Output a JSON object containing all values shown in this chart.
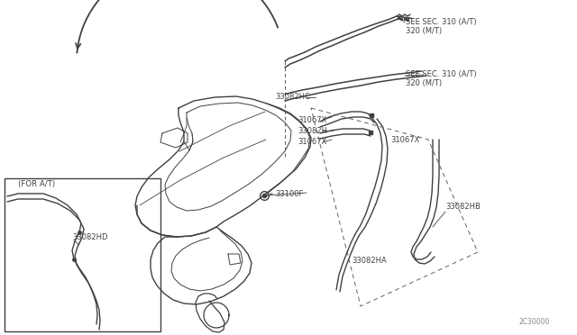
{
  "bg_color": "#ffffff",
  "line_color": "#404040",
  "text_color": "#404040",
  "fig_width": 6.4,
  "fig_height": 3.72,
  "dpi": 100,
  "watermark": "2C30000",
  "labels": {
    "see_sec_310_1a": "SEE SEC. 310 (A/T)",
    "see_sec_310_1b": "320 (M/T)",
    "see_sec_310_2a": "SEE SEC. 310 (A/T)",
    "see_sec_310_2b": "320 (M/T)",
    "part_33082HC": "33082HC",
    "part_31067X_1": "31067X",
    "part_33082H": "33082H",
    "part_31067X_2": "31067X",
    "part_31067X_3": "31067X",
    "part_33100F": "33100F",
    "part_33082HB": "33082HB",
    "part_33082HA": "33082HA",
    "for_at": "(FOR A/T)",
    "part_33082HD": "33082HD"
  }
}
